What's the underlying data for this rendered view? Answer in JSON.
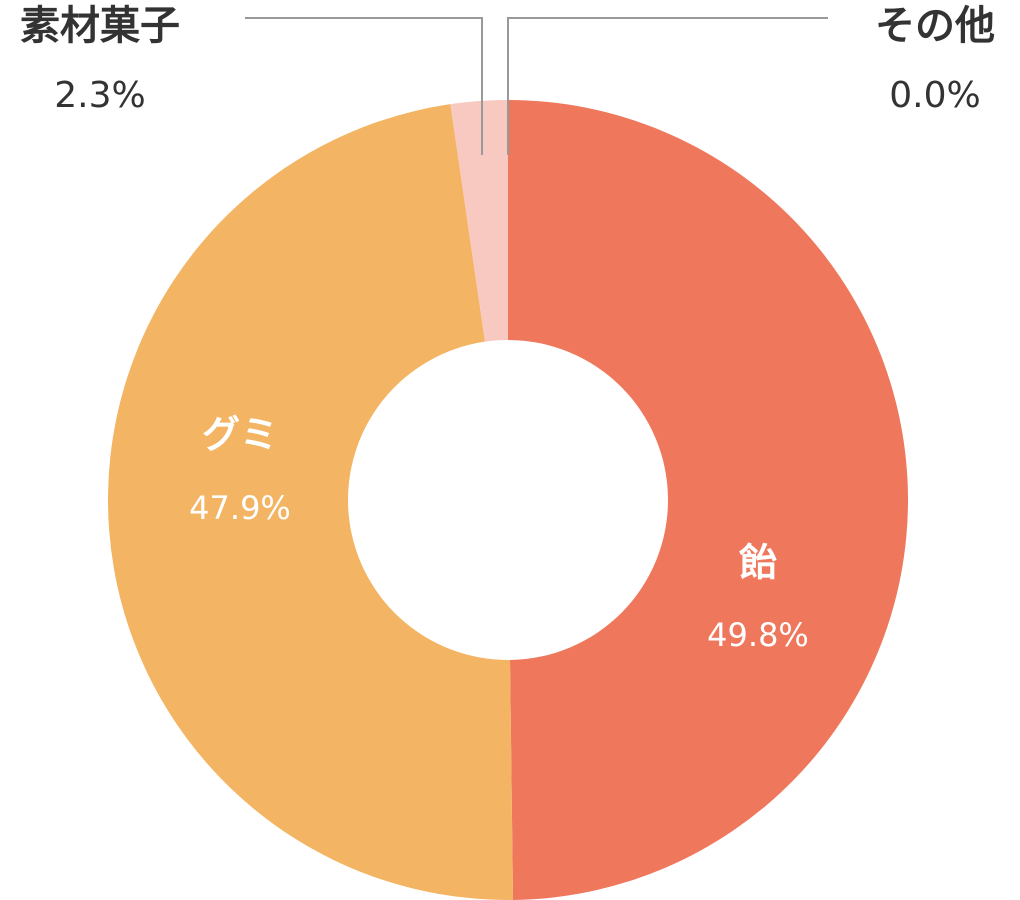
{
  "chart_data": {
    "type": "donut",
    "categories": [
      "飴",
      "グミ",
      "素材菓子",
      "その他"
    ],
    "values": [
      49.8,
      47.9,
      2.3,
      0.0
    ],
    "value_labels": [
      "49.8%",
      "47.9%",
      "2.3%",
      "0.0%"
    ],
    "colors": [
      "#ee775c",
      "#f3b463",
      "#f7c9c0",
      "#d9d9d9"
    ]
  }
}
